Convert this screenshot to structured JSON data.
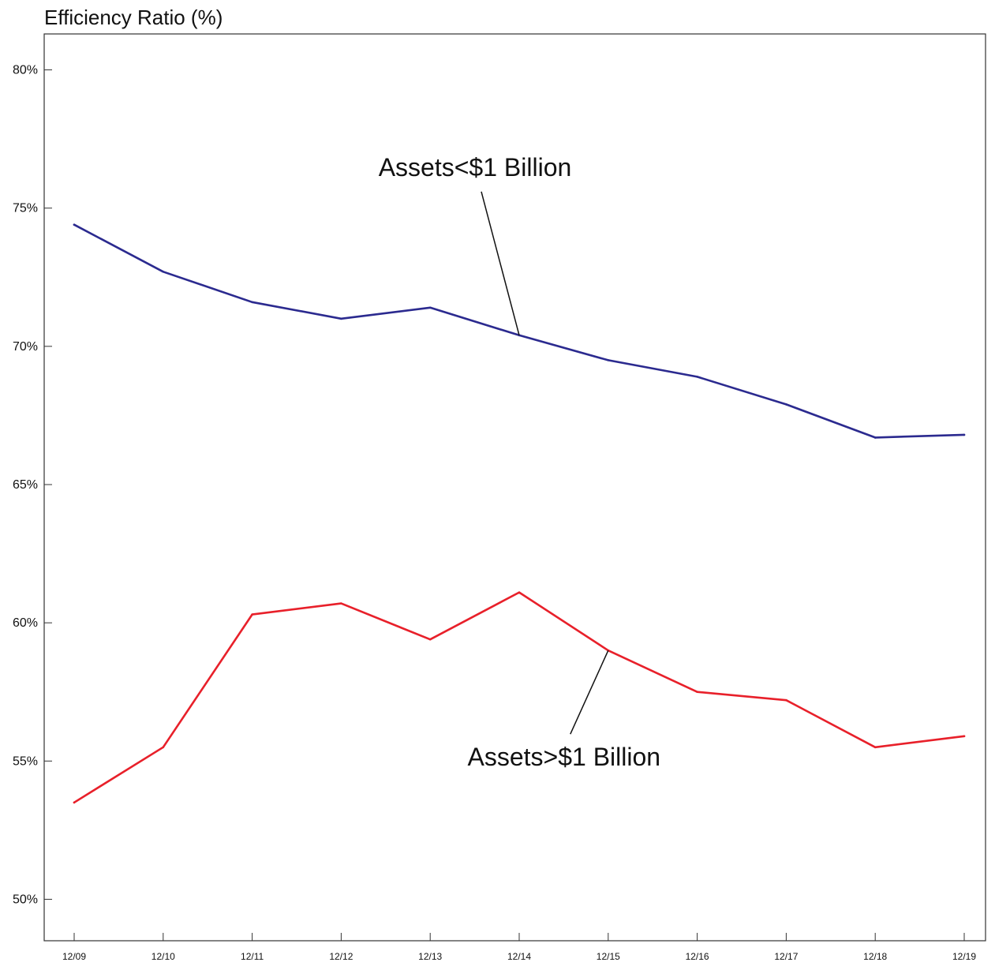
{
  "chart_data": {
    "type": "line",
    "title": "Efficiency Ratio (%)",
    "xlabel": "",
    "ylabel": "",
    "categories": [
      "12/09",
      "12/10",
      "12/11",
      "12/12",
      "12/13",
      "12/14",
      "12/15",
      "12/16",
      "12/17",
      "12/18",
      "12/19"
    ],
    "ylim": [
      48.5,
      81.3
    ],
    "yticks": [
      50,
      55,
      60,
      65,
      70,
      75,
      80
    ],
    "ytick_labels": [
      "50%",
      "55%",
      "60%",
      "65%",
      "70%",
      "75%",
      "80%"
    ],
    "grid": false,
    "legend": "none",
    "series": [
      {
        "name": "Assets<$1 Billion",
        "color": "#2b2a8f",
        "values": [
          74.4,
          72.7,
          71.6,
          71.0,
          71.4,
          70.4,
          69.5,
          68.9,
          67.9,
          66.7,
          66.8
        ]
      },
      {
        "name": "Assets>$1 Billion",
        "color": "#e8202a",
        "values": [
          53.5,
          55.5,
          60.3,
          60.7,
          59.4,
          61.1,
          59.0,
          57.5,
          57.2,
          55.5,
          55.9
        ]
      }
    ],
    "annotations": [
      {
        "text": "Assets<$1 Billion",
        "series": 0,
        "category_index": 5,
        "position": "above"
      },
      {
        "text": "Assets>$1 Billion",
        "series": 1,
        "category_index": 6,
        "position": "below"
      }
    ]
  }
}
